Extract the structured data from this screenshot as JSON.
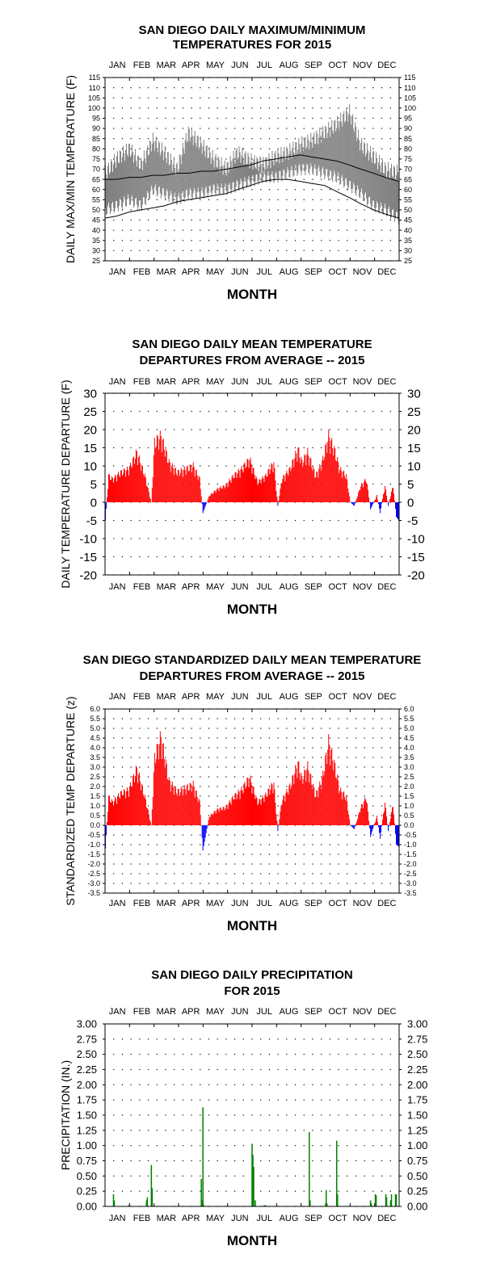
{
  "months": [
    "JAN",
    "FEB",
    "MAR",
    "APR",
    "MAY",
    "JUN",
    "JUL",
    "AUG",
    "SEP",
    "OCT",
    "NOV",
    "DEC"
  ],
  "colors": {
    "range_bar": "#808080",
    "positive": "#ff0000",
    "negative": "#0000ff",
    "precip": "#008000",
    "axis": "#000000"
  },
  "chart_data": [
    {
      "type": "bar",
      "title": [
        "SAN DIEGO DAILY MAXIMUM/MINIMUM",
        "TEMPERATURES FOR 2015"
      ],
      "xlabel": "MONTH",
      "ylabel": "DAILY MAX/MIN TEMPERATURE (F)",
      "ylim": [
        25,
        115
      ],
      "yticks": [
        25,
        30,
        35,
        40,
        45,
        50,
        55,
        60,
        65,
        70,
        75,
        80,
        85,
        90,
        95,
        100,
        105,
        110,
        115
      ],
      "grid": true,
      "x_day_of_year": [
        1,
        15,
        31,
        45,
        60,
        74,
        90,
        104,
        120,
        135,
        151,
        165,
        181,
        196,
        212,
        227,
        243,
        257,
        273,
        288,
        304,
        318,
        334,
        348,
        365
      ],
      "series": [
        {
          "name": "",
          "kind": "daily max",
          "values": [
            68,
            75,
            80,
            72,
            84,
            78,
            70,
            88,
            82,
            75,
            70,
            78,
            74,
            72,
            76,
            78,
            82,
            84,
            88,
            92,
            98,
            82,
            76,
            70,
            68
          ]
        },
        {
          "name": "",
          "kind": "daily min",
          "values": [
            50,
            52,
            55,
            52,
            60,
            58,
            55,
            58,
            58,
            60,
            60,
            62,
            64,
            66,
            66,
            68,
            70,
            70,
            68,
            66,
            62,
            58,
            52,
            50,
            46
          ]
        },
        {
          "name": "",
          "kind": "normal high",
          "values": [
            65,
            65,
            66,
            66,
            67,
            67,
            68,
            68,
            69,
            69,
            70,
            71,
            72,
            74,
            75,
            76,
            77,
            76,
            75,
            74,
            72,
            70,
            68,
            66,
            64
          ]
        },
        {
          "name": "",
          "kind": "normal low",
          "values": [
            46,
            47,
            49,
            50,
            51,
            52,
            54,
            55,
            56,
            57,
            58,
            60,
            62,
            64,
            65,
            65,
            64,
            63,
            62,
            59,
            56,
            53,
            50,
            48,
            46
          ]
        }
      ]
    },
    {
      "type": "bar",
      "title": [
        "SAN DIEGO DAILY MEAN TEMPERATURE",
        "DEPARTURES FROM AVERAGE -- 2015"
      ],
      "xlabel": "MONTH",
      "ylabel": "DAILY TEMPERATURE DEPARTURE (F)",
      "ylim": [
        -20,
        30
      ],
      "yticks": [
        -20,
        -15,
        -10,
        -5,
        0,
        5,
        10,
        15,
        20,
        25,
        30
      ],
      "grid": true,
      "x_day_of_year": [
        1,
        5,
        10,
        20,
        30,
        40,
        50,
        58,
        62,
        70,
        80,
        90,
        100,
        110,
        118,
        122,
        130,
        140,
        150,
        160,
        170,
        180,
        190,
        200,
        210,
        215,
        220,
        230,
        240,
        245,
        252,
        262,
        270,
        278,
        285,
        292,
        300,
        305,
        310,
        318,
        325,
        330,
        338,
        342,
        348,
        352,
        358,
        362,
        365
      ],
      "values": [
        -5,
        8,
        7,
        9,
        10,
        15,
        8,
        0,
        18,
        20,
        12,
        9,
        10,
        11,
        7,
        -3,
        2,
        4,
        5,
        8,
        10,
        13,
        6,
        8,
        12,
        -1,
        7,
        10,
        16,
        12,
        15,
        8,
        12,
        20,
        16,
        10,
        8,
        0,
        -1,
        5,
        7,
        -2,
        2,
        -3,
        5,
        -1,
        5,
        -4,
        -5
      ]
    },
    {
      "type": "bar",
      "title": [
        "SAN DIEGO STANDARDIZED DAILY MEAN TEMPERATURE",
        "DEPARTURES FROM AVERAGE -- 2015"
      ],
      "xlabel": "MONTH",
      "ylabel": "STANDARDIZED TEMP DEPARTURE (z)",
      "ylim": [
        -3.5,
        6.0
      ],
      "yticks": [
        -3.5,
        -3.0,
        -2.5,
        -2.0,
        -1.5,
        -1.0,
        -0.5,
        0.0,
        0.5,
        1.0,
        1.5,
        2.0,
        2.5,
        3.0,
        3.5,
        4.0,
        4.5,
        5.0,
        5.5,
        6.0
      ],
      "grid": true,
      "x_day_of_year": [
        1,
        5,
        10,
        20,
        30,
        40,
        50,
        58,
        62,
        70,
        80,
        90,
        100,
        110,
        118,
        122,
        130,
        140,
        150,
        160,
        170,
        180,
        190,
        200,
        210,
        215,
        220,
        230,
        240,
        245,
        252,
        262,
        270,
        278,
        285,
        292,
        300,
        305,
        310,
        318,
        325,
        330,
        338,
        342,
        348,
        352,
        358,
        362,
        365
      ],
      "values": [
        -1.2,
        1.6,
        1.3,
        1.8,
        2.0,
        3.2,
        1.6,
        0.0,
        3.8,
        5.0,
        2.5,
        1.9,
        2.1,
        2.3,
        1.3,
        -1.3,
        0.5,
        0.9,
        1.0,
        1.6,
        2.0,
        2.7,
        1.3,
        1.7,
        2.4,
        -0.3,
        1.4,
        2.2,
        3.5,
        2.6,
        3.3,
        1.7,
        2.6,
        4.7,
        3.5,
        2.0,
        1.6,
        0.0,
        -0.2,
        1.0,
        1.6,
        -0.6,
        0.5,
        -0.7,
        1.3,
        -0.3,
        1.2,
        -1.0,
        -1.1
      ]
    },
    {
      "type": "bar",
      "title": [
        "SAN DIEGO DAILY PRECIPITATION",
        "FOR 2015"
      ],
      "xlabel": "MONTH",
      "ylabel": "PRECIPITATION (IN.)",
      "ylim": [
        0,
        3.0
      ],
      "yticks": [
        0.0,
        0.25,
        0.5,
        0.75,
        1.0,
        1.25,
        1.5,
        1.75,
        2.0,
        2.25,
        2.5,
        2.75,
        3.0
      ],
      "grid": true,
      "x_day_of_year": [
        11,
        12,
        30,
        31,
        52,
        53,
        58,
        59,
        120,
        121,
        122,
        123,
        183,
        184,
        185,
        187,
        198,
        199,
        200,
        254,
        255,
        275,
        276,
        288,
        289,
        330,
        331,
        336,
        337,
        349,
        350,
        355,
        356,
        361,
        362
      ],
      "values": [
        0.2,
        0.1,
        0.02,
        0.01,
        0.1,
        0.15,
        0.68,
        0.3,
        0.45,
        0.1,
        1.63,
        0.02,
        1.03,
        0.85,
        0.65,
        0.1,
        0.02,
        0.01,
        0.02,
        1.22,
        0.1,
        0.27,
        0.05,
        1.08,
        0.2,
        0.1,
        0.05,
        0.2,
        0.18,
        0.2,
        0.15,
        0.1,
        0.2,
        0.2,
        0.2
      ]
    }
  ]
}
